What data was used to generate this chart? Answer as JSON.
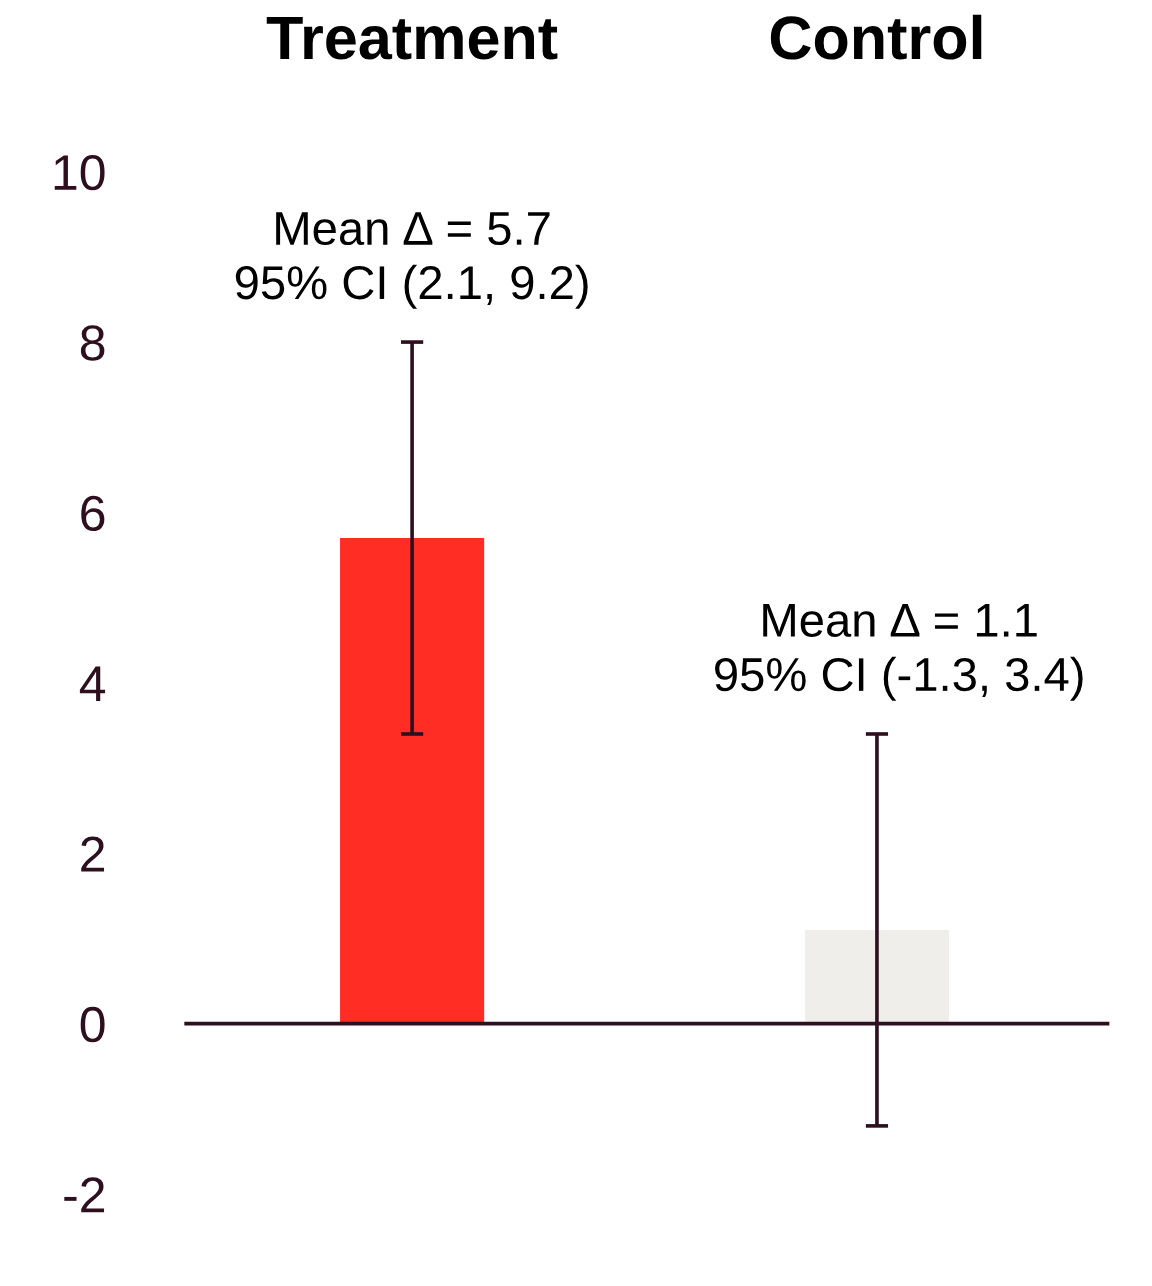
{
  "chart_data": {
    "type": "bar",
    "categories": [
      "Treatment",
      "Control"
    ],
    "values": [
      5.7,
      1.1
    ],
    "colors": [
      "#ff2d24",
      "#efeeea"
    ],
    "errors": [
      [
        3.4,
        8.0
      ],
      [
        -1.2,
        3.4
      ]
    ],
    "ylim": [
      -2,
      10
    ],
    "yticks": [
      -2,
      0,
      2,
      4,
      6,
      8,
      10
    ],
    "grid": false,
    "ref_lines": [
      {
        "axis": "y",
        "value": 0,
        "color": "#2d0f1f"
      }
    ],
    "annotations": [
      "Mean ∆ = 5.7\n95% CI (2.1, 9.2)",
      "Mean ∆ = 1.1\n95% CI (-1.3, 3.4)"
    ]
  }
}
